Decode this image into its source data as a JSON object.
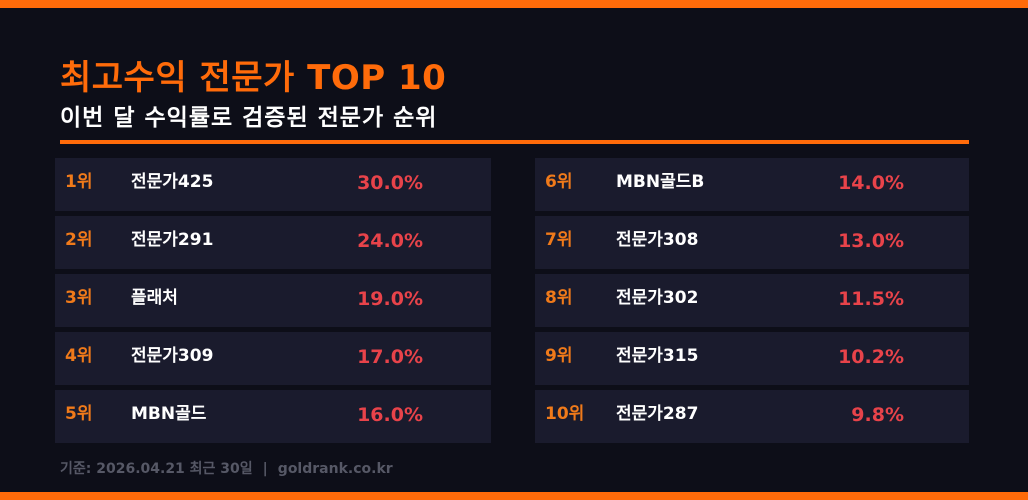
{
  "header": {
    "title": "최고수익 전문가 TOP 10",
    "subtitle": "이번 달 수익률로 검증된 전문가 순위"
  },
  "colors": {
    "accent": "#ff6b0a",
    "background": "#0d0e18",
    "card": "#1a1b2d",
    "rank": "#f07a1a",
    "percent": "#e8434a",
    "footer": "#565866"
  },
  "rankings": [
    {
      "rank": "1위",
      "name": "전문가425",
      "return": "30.0%"
    },
    {
      "rank": "2위",
      "name": "전문가291",
      "return": "24.0%"
    },
    {
      "rank": "3위",
      "name": "플래처",
      "return": "19.0%"
    },
    {
      "rank": "4위",
      "name": "전문가309",
      "return": "17.0%"
    },
    {
      "rank": "5위",
      "name": "MBN골드",
      "return": "16.0%"
    },
    {
      "rank": "6위",
      "name": "MBN골드B",
      "return": "14.0%"
    },
    {
      "rank": "7위",
      "name": "전문가308",
      "return": "13.0%"
    },
    {
      "rank": "8위",
      "name": "전문가302",
      "return": "11.5%"
    },
    {
      "rank": "9위",
      "name": "전문가315",
      "return": "10.2%"
    },
    {
      "rank": "10위",
      "name": "전문가287",
      "return": "9.8%"
    }
  ],
  "footer": {
    "basis": "기준: 2026.04.21 최근 30일",
    "separator": "|",
    "site": "goldrank.co.kr"
  }
}
